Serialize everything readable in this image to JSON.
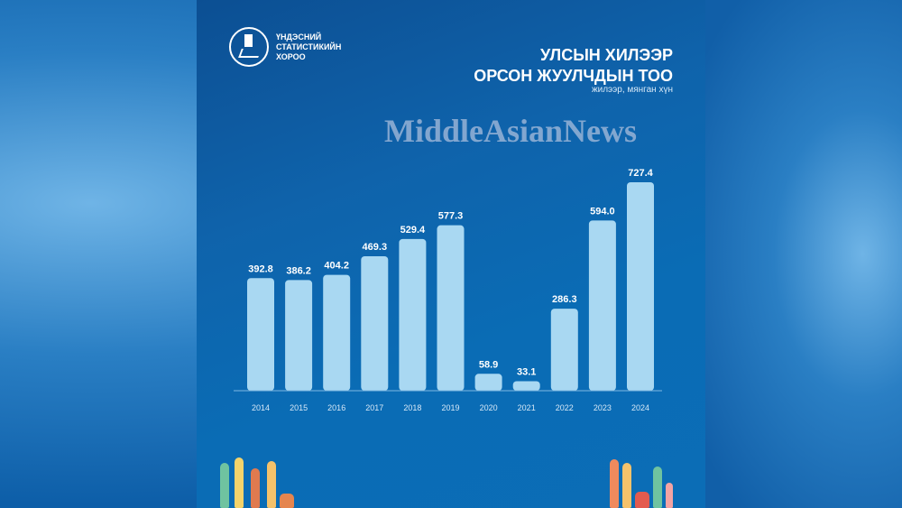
{
  "logo": {
    "lines": [
      "ҮНДЭСНИЙ",
      "СТАТИСТИКИЙН",
      "ХОРОО"
    ]
  },
  "watermark": "MiddleAsianNews",
  "colors": {
    "bar": "#a9d8f2",
    "background": "#0d62aa",
    "text": "#ffffff"
  },
  "chart_data": {
    "type": "bar",
    "title": "УЛСЫН ХИЛЭЭР ОРСОН ЖУУЛЧДЫН ТОО",
    "title_lines": [
      "УЛСЫН ХИЛЭЭР",
      "ОРСОН ЖУУЛЧДЫН ТОО"
    ],
    "subtitle": "жилээр, мянган хүн",
    "categories": [
      "2014",
      "2015",
      "2016",
      "2017",
      "2018",
      "2019",
      "2020",
      "2021",
      "2022",
      "2023",
      "2024"
    ],
    "values": [
      392.8,
      386.2,
      404.2,
      469.3,
      529.4,
      577.3,
      58.9,
      33.1,
      286.3,
      594.0,
      727.4
    ],
    "value_labels": [
      "392.8",
      "386.2",
      "404.2",
      "469.3",
      "529.4",
      "577.3",
      "58.9",
      "33.1",
      "286.3",
      "594.0",
      "727.4"
    ],
    "ylim": [
      0,
      727.4
    ],
    "grid": false,
    "xlabel": "",
    "ylabel": ""
  }
}
